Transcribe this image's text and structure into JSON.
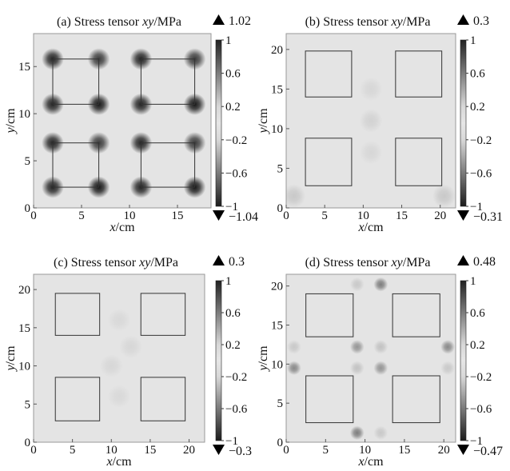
{
  "chart_data": [
    {
      "type": "heatmap",
      "title_parts": [
        "(a) Stress tensor ",
        "xy",
        "/MPa"
      ],
      "xlabel_parts": [
        "x",
        "/cm"
      ],
      "ylabel_parts": [
        "y",
        "/cm"
      ],
      "xticks": [
        "0",
        "5",
        "10",
        "15"
      ],
      "yticks": [
        "0",
        "5",
        "10",
        "15"
      ],
      "xlim": [
        0,
        18.5
      ],
      "ylim": [
        0,
        18.5
      ],
      "colorbar_ticks": [
        "1",
        "0.6",
        "0.2",
        "−0.2",
        "−0.6",
        "−1"
      ],
      "max_label": "1.02",
      "min_label": "−1.04",
      "squares": [
        [
          2,
          2.2,
          6.8,
          6.9
        ],
        [
          11.2,
          2.2,
          16.8,
          6.9
        ],
        [
          2,
          11,
          6.8,
          15.8
        ],
        [
          11.2,
          11,
          16.8,
          15.8
        ]
      ],
      "spots": [
        [
          2,
          2.2,
          0.85
        ],
        [
          6.8,
          2.2,
          0.9
        ],
        [
          2,
          6.9,
          0.85
        ],
        [
          6.8,
          6.9,
          0.75
        ],
        [
          11.2,
          2.2,
          0.85
        ],
        [
          16.8,
          2.2,
          0.9
        ],
        [
          11.2,
          6.9,
          0.85
        ],
        [
          16.8,
          6.9,
          0.75
        ],
        [
          2,
          11,
          0.85
        ],
        [
          6.8,
          11,
          0.9
        ],
        [
          2,
          15.8,
          0.85
        ],
        [
          6.8,
          15.8,
          0.75
        ],
        [
          11.2,
          11,
          0.85
        ],
        [
          16.8,
          11,
          0.9
        ],
        [
          11.2,
          15.8,
          0.85
        ],
        [
          16.8,
          15.8,
          0.75
        ]
      ],
      "spot_radius": 1.15
    },
    {
      "type": "heatmap",
      "title_parts": [
        "(b) Stress tensor ",
        "xy",
        "/MPa"
      ],
      "xlabel_parts": [
        "x",
        "/cm"
      ],
      "ylabel_parts": [
        "y",
        "/cm"
      ],
      "xticks": [
        "0",
        "5",
        "10",
        "15",
        "20"
      ],
      "yticks": [
        "0",
        "5",
        "10",
        "15",
        "20"
      ],
      "xlim": [
        0,
        22
      ],
      "ylim": [
        0,
        22
      ],
      "colorbar_ticks": [
        "1",
        "0.6",
        "0.2",
        "−0.2",
        "−0.6",
        "−1"
      ],
      "max_label": "0.3",
      "min_label": "−0.31",
      "squares": [
        [
          2.5,
          2.8,
          8.5,
          8.8
        ],
        [
          14.2,
          2.8,
          20.2,
          8.8
        ],
        [
          2.5,
          14,
          8.5,
          19.8
        ],
        [
          14.2,
          14,
          20.2,
          19.8
        ]
      ],
      "spots": [
        [
          1,
          1.5,
          0.12
        ],
        [
          20.5,
          1.5,
          0.12
        ],
        [
          11,
          11,
          0.08
        ],
        [
          11,
          7,
          0.06
        ],
        [
          11,
          15,
          0.06
        ]
      ],
      "spot_radius": 1.5
    },
    {
      "type": "heatmap",
      "title_parts": [
        "(c) Stress tensor ",
        "xy",
        "/MPa"
      ],
      "xlabel_parts": [
        "x",
        "/cm"
      ],
      "ylabel_parts": [
        "y",
        "/cm"
      ],
      "xticks": [
        "0",
        "5",
        "10",
        "15",
        "20"
      ],
      "yticks": [
        "0",
        "5",
        "10",
        "15",
        "20"
      ],
      "xlim": [
        0,
        22
      ],
      "ylim": [
        0,
        22
      ],
      "colorbar_ticks": [
        "1",
        "0.6",
        "0.2",
        "−0.2",
        "−0.6",
        "−1"
      ],
      "max_label": "0.3",
      "min_label": "−0.3",
      "squares": [
        [
          2.8,
          2.8,
          8.5,
          8.5
        ],
        [
          13.8,
          2.8,
          19.5,
          8.5
        ],
        [
          2.8,
          14,
          8.5,
          19.5
        ],
        [
          13.8,
          14,
          19.5,
          19.5
        ]
      ],
      "spots": [
        [
          10,
          10,
          0.06
        ],
        [
          12.5,
          12.5,
          0.06
        ],
        [
          11,
          6,
          0.05
        ],
        [
          11,
          16,
          0.05
        ]
      ],
      "spot_radius": 1.5
    },
    {
      "type": "heatmap",
      "title_parts": [
        "(d) Stress tensor ",
        "xy",
        "/MPa"
      ],
      "xlabel_parts": [
        "x",
        "/cm"
      ],
      "ylabel_parts": [
        "y",
        "/cm"
      ],
      "xticks": [
        "0",
        "5",
        "10",
        "15",
        "20"
      ],
      "yticks": [
        "0",
        "5",
        "10",
        "15",
        "20"
      ],
      "xlim": [
        0,
        21.5
      ],
      "ylim": [
        0,
        21.5
      ],
      "colorbar_ticks": [
        "1",
        "0.6",
        "0.2",
        "−0.2",
        "−0.6",
        "−1"
      ],
      "max_label": "0.48",
      "min_label": "−0.47",
      "squares": [
        [
          2.5,
          2.5,
          8.5,
          8.5
        ],
        [
          13.5,
          2.5,
          19.5,
          8.5
        ],
        [
          2.5,
          13.5,
          8.5,
          19
        ],
        [
          13.5,
          13.5,
          19.5,
          19
        ]
      ],
      "spots": [
        [
          9,
          1.2,
          0.45
        ],
        [
          12,
          20.2,
          0.45
        ],
        [
          1,
          9.5,
          0.4
        ],
        [
          20.5,
          12.2,
          0.4
        ],
        [
          9,
          12.2,
          0.35
        ],
        [
          12,
          9.5,
          0.35
        ],
        [
          9,
          9.5,
          0.15
        ],
        [
          12,
          12.2,
          0.15
        ],
        [
          9,
          20.2,
          0.12
        ],
        [
          12,
          1.2,
          0.12
        ],
        [
          1,
          12.2,
          0.12
        ],
        [
          20.5,
          9.5,
          0.12
        ]
      ],
      "spot_radius": 0.9
    }
  ]
}
